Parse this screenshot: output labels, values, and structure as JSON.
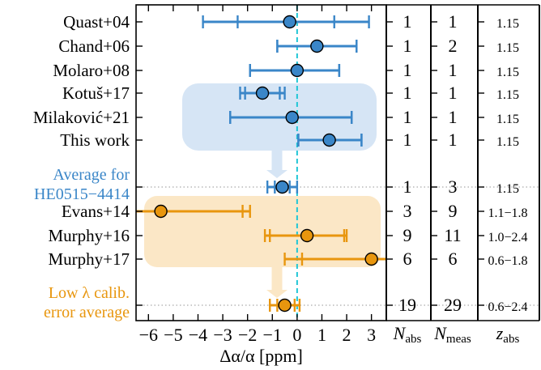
{
  "chart_data": {
    "type": "forest",
    "xlabel": "Δα/α [ppm]",
    "xlim": [
      -6.5,
      3.6
    ],
    "xticks": [
      "−6",
      "−5",
      "−4",
      "−3",
      "−2",
      "−1",
      "0",
      "1",
      "2",
      "3"
    ],
    "xtick_values": [
      -6,
      -5,
      -4,
      -3,
      -2,
      -1,
      0,
      1,
      2,
      3
    ],
    "reference_line_x": 0,
    "rows": [
      {
        "label": "Quast+04",
        "group": "blue",
        "value": -0.3,
        "stat": [
          -2.4,
          1.5
        ],
        "total": [
          -3.8,
          2.9
        ],
        "n_abs": "1",
        "n_meas": "1",
        "z_abs": "1.15"
      },
      {
        "label": "Chand+06",
        "group": "blue",
        "value": 0.8,
        "stat": [
          -0.8,
          2.4
        ],
        "total": [
          -0.8,
          2.4
        ],
        "n_abs": "1",
        "n_meas": "2",
        "z_abs": "1.15"
      },
      {
        "label": "Molaro+08",
        "group": "blue",
        "value": 0.0,
        "stat": [
          -1.9,
          1.7
        ],
        "total": [
          -1.9,
          1.7
        ],
        "n_abs": "1",
        "n_meas": "1",
        "z_abs": "1.15"
      },
      {
        "label": "Kotuš+17",
        "group": "blue",
        "value": -1.4,
        "stat": [
          -2.1,
          -0.7
        ],
        "total": [
          -2.3,
          -0.5
        ],
        "n_abs": "1",
        "n_meas": "1",
        "z_abs": "1.15"
      },
      {
        "label": "Milaković+21",
        "group": "blue",
        "value": -0.2,
        "stat": [
          -2.7,
          2.2
        ],
        "total": [
          -2.7,
          2.2
        ],
        "n_abs": "1",
        "n_meas": "1",
        "z_abs": "1.15"
      },
      {
        "label": "This work",
        "group": "blue",
        "value": 1.3,
        "stat": [
          0.05,
          2.6
        ],
        "total": [
          0.05,
          2.6
        ],
        "n_abs": "1",
        "n_meas": "1",
        "z_abs": "1.15"
      },
      {
        "label": "Average for\nHE0515−4414",
        "group": "blue-avg",
        "value": -0.6,
        "stat": [
          -0.9,
          -0.3
        ],
        "total": [
          -1.2,
          0.0
        ],
        "n_abs": "1",
        "n_meas": "3",
        "z_abs": "1.15"
      },
      {
        "label": "Evans+14",
        "group": "orange",
        "value": -5.5,
        "stat": [
          -6.5,
          -2.2
        ],
        "total": [
          -6.5,
          -1.9
        ],
        "n_abs": "3",
        "n_meas": "9",
        "z_abs": "1.1−1.8"
      },
      {
        "label": "Murphy+16",
        "group": "orange",
        "value": 0.4,
        "stat": [
          -1.1,
          1.9
        ],
        "total": [
          -1.3,
          2.0
        ],
        "n_abs": "9",
        "n_meas": "11",
        "z_abs": "1.0−2.4"
      },
      {
        "label": "Murphy+17",
        "group": "orange",
        "value": 3.0,
        "stat": [
          0.2,
          3.6
        ],
        "total": [
          -0.5,
          3.6
        ],
        "n_abs": "6",
        "n_meas": "6",
        "z_abs": "0.6−1.8"
      },
      {
        "label": "Low λ calib.\nerror average",
        "group": "orange-avg",
        "value": -0.5,
        "stat": [
          -0.8,
          -0.1
        ],
        "total": [
          -1.1,
          0.1
        ],
        "n_abs": "19",
        "n_meas": "29",
        "z_abs": "0.6−2.4"
      }
    ],
    "columns": [
      {
        "key": "n_abs",
        "title_main": "N",
        "title_sub": "abs"
      },
      {
        "key": "n_meas",
        "title_main": "N",
        "title_sub": "meas"
      },
      {
        "key": "z_abs",
        "title_main": "z",
        "title_sub": "abs"
      }
    ]
  },
  "colors": {
    "blue": "#3a86c8",
    "orange": "#e8960e",
    "blue_band": "#d6e5f5",
    "orange_band": "#fbe7c6",
    "cyan_line": "#1fc6d6",
    "marker_edge": "#000000"
  }
}
